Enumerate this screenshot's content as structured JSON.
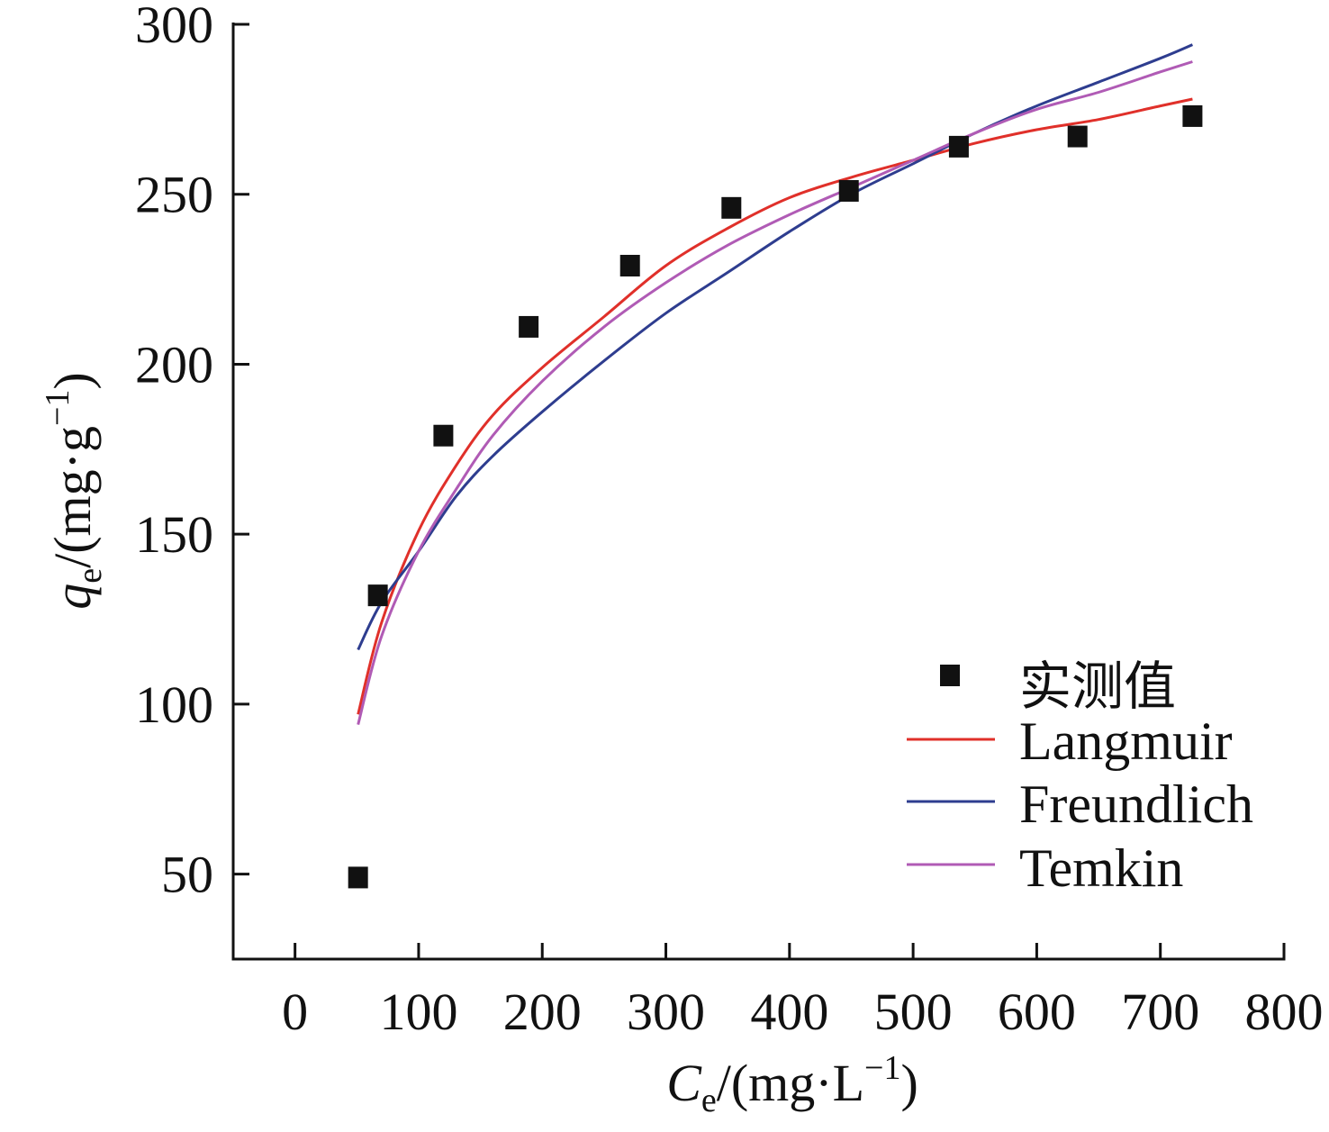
{
  "chart_data": {
    "type": "scatter",
    "xlabel": {
      "main": "C",
      "sub": "e",
      "unit_pre": "/(mg·L",
      "sup": "−1",
      "unit_post": ")"
    },
    "ylabel": {
      "main": "q",
      "sub": "e",
      "unit_pre": "/(mg·g",
      "sup": "−1",
      "unit_post": ")"
    },
    "xlim": [
      -50,
      800
    ],
    "ylim": [
      25,
      300
    ],
    "x_ticks": [
      0,
      100,
      200,
      300,
      400,
      500,
      600,
      700,
      800
    ],
    "x_tick_labels": [
      "0",
      "100",
      "200",
      "300",
      "400",
      "500",
      "600",
      "700",
      "800"
    ],
    "y_ticks": [
      50,
      100,
      150,
      200,
      250,
      300
    ],
    "y_tick_labels": [
      "50",
      "100",
      "150",
      "200",
      "250",
      "300"
    ],
    "grid": false,
    "legend_position": "bottom-right",
    "series": [
      {
        "name": "实测值",
        "kind": "points",
        "color": "#111111",
        "x": [
          51,
          67,
          120,
          189,
          271,
          353,
          448,
          537,
          633,
          726
        ],
        "y": [
          49,
          132,
          179,
          211,
          229,
          246,
          251,
          264,
          267,
          273
        ]
      },
      {
        "name": "Langmuir",
        "kind": "line",
        "color": "#e0302a",
        "x": [
          51,
          70,
          100,
          130,
          160,
          200,
          250,
          300,
          350,
          400,
          450,
          500,
          550,
          600,
          650,
          700,
          726
        ],
        "y": [
          97,
          124,
          151,
          170,
          185,
          199,
          214,
          229,
          240,
          249,
          255,
          260,
          265,
          269,
          272,
          276,
          278
        ]
      },
      {
        "name": "Freundlich",
        "kind": "line",
        "color": "#2e3d8f",
        "x": [
          51,
          70,
          100,
          130,
          160,
          200,
          250,
          300,
          350,
          400,
          450,
          500,
          550,
          600,
          650,
          700,
          726
        ],
        "y": [
          116,
          130,
          145,
          161,
          173,
          186,
          201,
          215,
          227,
          239,
          250,
          259,
          268,
          276,
          283,
          290,
          294
        ]
      },
      {
        "name": "Temkin",
        "kind": "line",
        "color": "#b05bb5",
        "x": [
          51,
          70,
          100,
          130,
          160,
          200,
          250,
          300,
          350,
          400,
          450,
          500,
          550,
          600,
          650,
          700,
          726
        ],
        "y": [
          94,
          120,
          145,
          163,
          179,
          195,
          211,
          224,
          235,
          244,
          252,
          260,
          268,
          275,
          280,
          286,
          289
        ]
      }
    ]
  }
}
